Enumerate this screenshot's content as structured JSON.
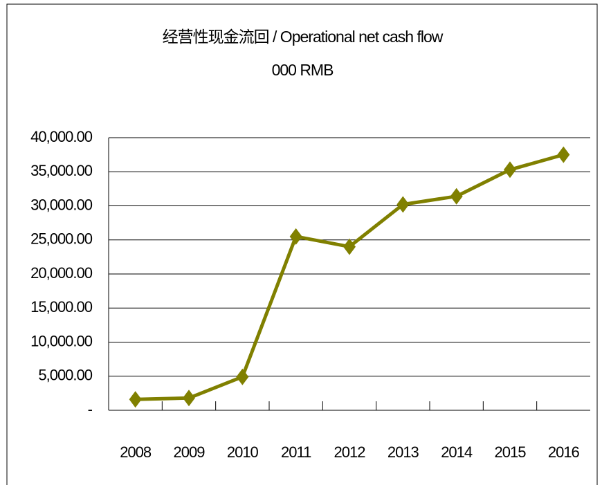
{
  "chart_data": {
    "type": "line",
    "title": "经营性现金流回 / Operational net cash flow",
    "subtitle": "000 RMB",
    "categories": [
      "2008",
      "2009",
      "2010",
      "2011",
      "2012",
      "2013",
      "2014",
      "2015",
      "2016"
    ],
    "series": [
      {
        "name": "Operational net cash flow",
        "color": "#808000",
        "values": [
          1600,
          1800,
          4900,
          25500,
          24000,
          30200,
          31400,
          35300,
          37500
        ]
      }
    ],
    "ylim": [
      0,
      40000
    ],
    "yticks": [
      {
        "value": 0,
        "label": "-"
      },
      {
        "value": 5000,
        "label": "5,000.00"
      },
      {
        "value": 10000,
        "label": "10,000.00"
      },
      {
        "value": 15000,
        "label": "15,000.00"
      },
      {
        "value": 20000,
        "label": "20,000.00"
      },
      {
        "value": 25000,
        "label": "25,000.00"
      },
      {
        "value": 30000,
        "label": "30,000.00"
      },
      {
        "value": 35000,
        "label": "35,000.00"
      },
      {
        "value": 40000,
        "label": "40,000.00"
      }
    ],
    "grid": true
  }
}
